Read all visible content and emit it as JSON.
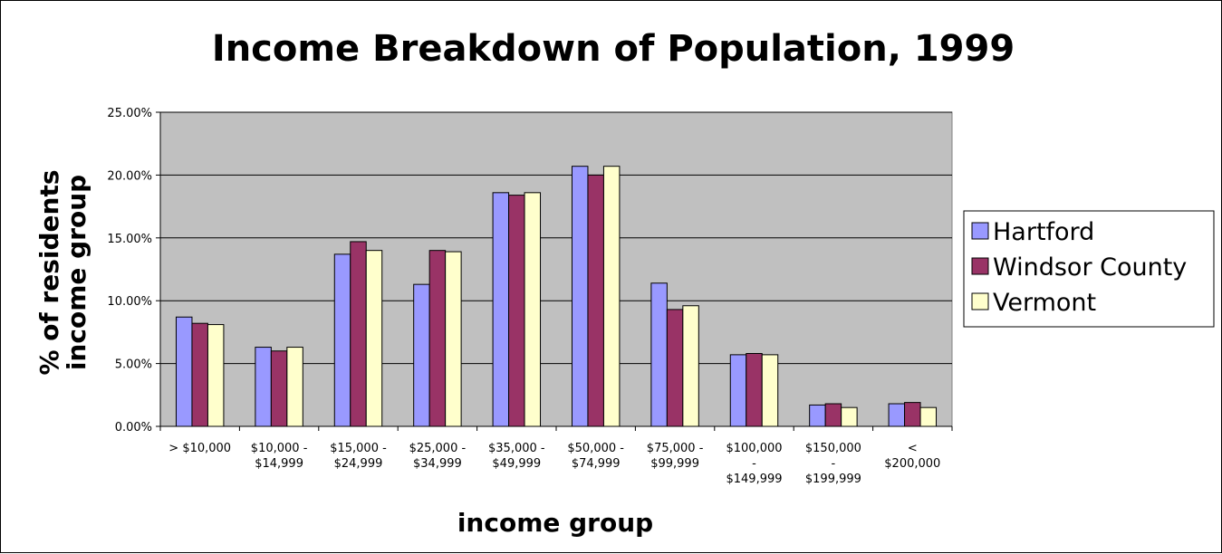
{
  "chart_data": {
    "type": "bar",
    "title": "Income Breakdown of Population, 1999",
    "xlabel": "income group",
    "ylabel": [
      "% of residents",
      "income group"
    ],
    "ylim": [
      0,
      0.25
    ],
    "yticks": [
      "0.00%",
      "5.00%",
      "10.00%",
      "15.00%",
      "20.00%",
      "25.00%"
    ],
    "ytick_values": [
      0,
      0.05,
      0.1,
      0.15,
      0.2,
      0.25
    ],
    "grid": true,
    "legend_position": "right",
    "categories": [
      [
        "> $10,000"
      ],
      [
        "$10,000 -",
        "$14,999"
      ],
      [
        "$15,000 -",
        "$24,999"
      ],
      [
        "$25,000 -",
        "$34,999"
      ],
      [
        "$35,000 -",
        "$49,999"
      ],
      [
        "$50,000 -",
        "$74,999"
      ],
      [
        "$75,000 -",
        "$99,999"
      ],
      [
        "$100,000",
        "-",
        "$149,999"
      ],
      [
        "$150,000",
        "-",
        "$199,999"
      ],
      [
        "<",
        "$200,000"
      ]
    ],
    "series": [
      {
        "name": "Hartford",
        "color": "#9999FF",
        "values": [
          0.087,
          0.063,
          0.137,
          0.113,
          0.186,
          0.207,
          0.114,
          0.057,
          0.017,
          0.018
        ]
      },
      {
        "name": "Windsor County",
        "color": "#993366",
        "values": [
          0.082,
          0.06,
          0.147,
          0.14,
          0.184,
          0.2,
          0.093,
          0.058,
          0.018,
          0.019
        ]
      },
      {
        "name": "Vermont",
        "color": "#FFFFCC",
        "values": [
          0.081,
          0.063,
          0.14,
          0.139,
          0.186,
          0.207,
          0.096,
          0.057,
          0.015,
          0.015
        ]
      }
    ],
    "plot_background": "#C0C0C0"
  }
}
